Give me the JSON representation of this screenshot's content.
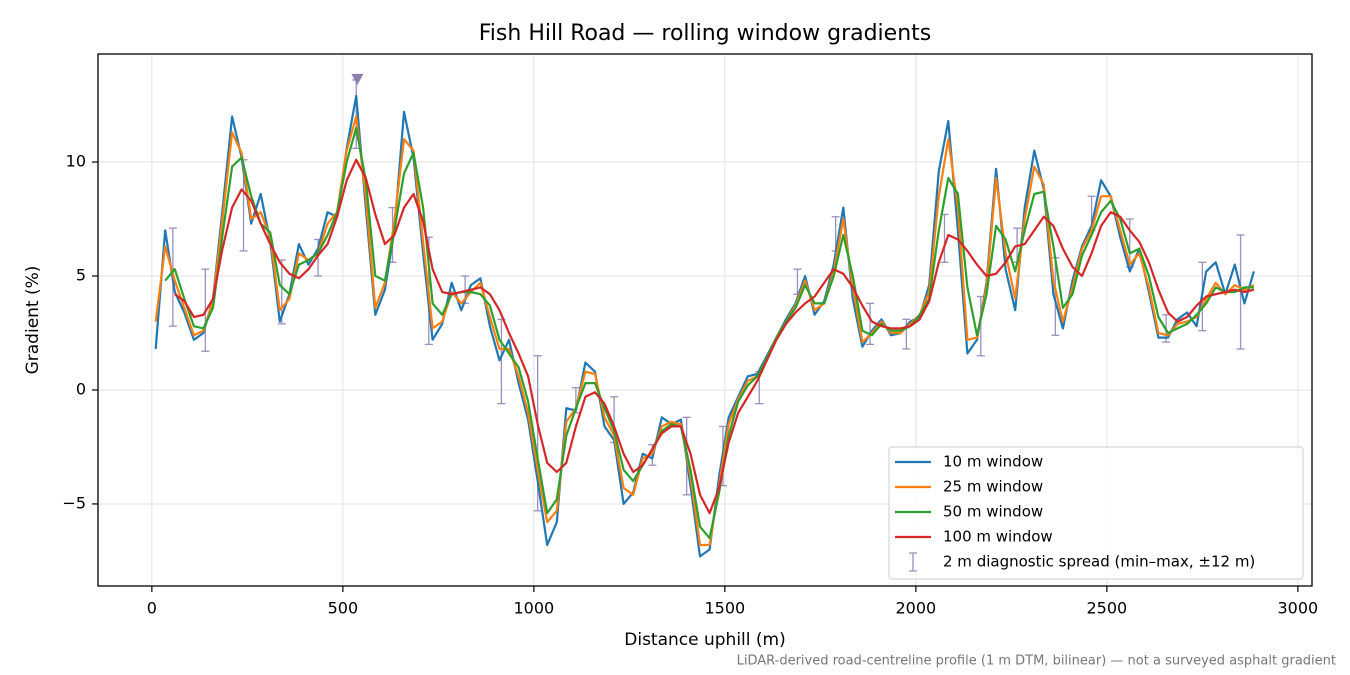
{
  "chart_data": {
    "type": "line",
    "title": "Fish Hill Road — rolling window gradients",
    "xlabel": "Distance uphill (m)",
    "ylabel": "Gradient (%)",
    "footnote": "LiDAR-derived road-centreline profile (1 m DTM, bilinear) — not a surveyed asphalt gradient",
    "xlim": [
      -141,
      3037
    ],
    "ylim": [
      -8.6,
      14.74
    ],
    "xticks": [
      0,
      500,
      1000,
      1500,
      2000,
      2500,
      3000
    ],
    "yticks": [
      {
        "value": -5,
        "label": "−5"
      },
      0,
      5,
      10
    ],
    "grid": true,
    "legend": "lower right",
    "x": [
      10,
      35,
      60,
      85,
      110,
      135,
      160,
      185,
      210,
      235,
      260,
      285,
      310,
      335,
      360,
      385,
      410,
      435,
      460,
      485,
      510,
      535,
      560,
      585,
      610,
      635,
      660,
      685,
      710,
      735,
      760,
      785,
      810,
      835,
      860,
      885,
      910,
      935,
      960,
      985,
      1010,
      1035,
      1060,
      1085,
      1110,
      1135,
      1160,
      1185,
      1210,
      1235,
      1260,
      1285,
      1310,
      1335,
      1360,
      1385,
      1410,
      1435,
      1460,
      1485,
      1510,
      1535,
      1560,
      1585,
      1610,
      1635,
      1660,
      1685,
      1710,
      1735,
      1760,
      1785,
      1810,
      1835,
      1860,
      1885,
      1910,
      1935,
      1960,
      1985,
      2010,
      2035,
      2060,
      2085,
      2110,
      2135,
      2160,
      2185,
      2210,
      2235,
      2260,
      2285,
      2310,
      2335,
      2360,
      2385,
      2410,
      2435,
      2460,
      2485,
      2510,
      2535,
      2560,
      2585,
      2610,
      2635,
      2660,
      2685,
      2710,
      2735,
      2760,
      2785,
      2810,
      2835,
      2860,
      2885
    ],
    "series": [
      {
        "name": "10 m window",
        "color": "#1f77b4",
        "values": [
          1.8,
          7.0,
          4.3,
          3.4,
          2.2,
          2.5,
          4.0,
          7.9,
          12.0,
          10.2,
          7.3,
          8.6,
          6.5,
          3.0,
          4.2,
          6.4,
          5.5,
          6.2,
          7.8,
          7.6,
          10.6,
          12.9,
          8.0,
          3.3,
          4.4,
          7.0,
          12.2,
          10.2,
          6.0,
          2.2,
          2.9,
          4.7,
          3.5,
          4.6,
          4.9,
          2.8,
          1.3,
          2.2,
          0.3,
          -1.3,
          -4.0,
          -6.8,
          -5.8,
          -0.8,
          -0.9,
          1.2,
          0.8,
          -1.6,
          -2.2,
          -5.0,
          -4.5,
          -2.8,
          -3.0,
          -1.2,
          -1.5,
          -1.3,
          -4.2,
          -7.3,
          -7.0,
          -3.8,
          -1.2,
          -0.3,
          0.6,
          0.7,
          1.5,
          2.3,
          3.1,
          3.8,
          5.0,
          3.3,
          3.9,
          5.5,
          8.0,
          4.0,
          1.9,
          2.6,
          3.1,
          2.4,
          2.5,
          3.0,
          3.2,
          4.6,
          9.6,
          11.8,
          7.0,
          1.6,
          2.2,
          4.7,
          9.7,
          5.3,
          3.5,
          8.0,
          10.5,
          8.8,
          4.2,
          2.7,
          4.8,
          6.3,
          7.2,
          9.2,
          8.5,
          6.7,
          5.2,
          6.2,
          4.3,
          2.3,
          2.3,
          3.1,
          3.4,
          2.8,
          5.2,
          5.6,
          4.2,
          5.5,
          3.8,
          5.2
        ]
      },
      {
        "name": "25 m window",
        "color": "#ff7f0e",
        "values": [
          3.0,
          6.3,
          4.8,
          3.6,
          2.4,
          2.6,
          3.9,
          7.5,
          11.3,
          10.4,
          7.5,
          7.8,
          6.7,
          3.5,
          4.0,
          6.0,
          5.7,
          6.0,
          7.3,
          7.8,
          10.5,
          12.0,
          8.5,
          3.6,
          4.7,
          7.4,
          11.0,
          10.5,
          6.5,
          2.7,
          3.0,
          4.3,
          3.8,
          4.3,
          4.7,
          3.2,
          1.8,
          1.8,
          0.6,
          -1.0,
          -3.5,
          -5.8,
          -5.3,
          -1.4,
          -0.8,
          0.8,
          0.7,
          -1.2,
          -2.0,
          -4.3,
          -4.6,
          -3.0,
          -2.8,
          -1.6,
          -1.4,
          -1.5,
          -3.8,
          -6.8,
          -6.8,
          -4.2,
          -1.5,
          -0.4,
          0.4,
          0.6,
          1.4,
          2.3,
          3.0,
          3.7,
          4.8,
          3.5,
          3.8,
          5.2,
          7.5,
          4.5,
          2.1,
          2.5,
          3.0,
          2.5,
          2.5,
          2.9,
          3.3,
          4.3,
          8.5,
          11.0,
          8.0,
          2.2,
          2.3,
          4.5,
          9.3,
          6.0,
          4.0,
          7.5,
          9.8,
          9.0,
          4.8,
          3.0,
          4.5,
          6.2,
          7.0,
          8.5,
          8.5,
          7.0,
          5.5,
          6.0,
          4.5,
          2.5,
          2.4,
          2.9,
          3.0,
          3.2,
          4.0,
          4.7,
          4.2,
          4.6,
          4.4,
          4.6
        ]
      },
      {
        "name": "50 m window",
        "color": "#2ca02c",
        "values": [
          null,
          4.8,
          5.3,
          4.0,
          2.8,
          2.7,
          3.6,
          6.8,
          9.8,
          10.2,
          8.5,
          7.3,
          6.9,
          4.6,
          4.2,
          5.5,
          5.7,
          6.0,
          6.8,
          7.8,
          10.0,
          11.5,
          9.2,
          5.0,
          4.8,
          7.0,
          9.5,
          10.4,
          8.0,
          3.8,
          3.3,
          4.2,
          4.3,
          4.3,
          4.2,
          3.7,
          2.2,
          1.6,
          1.0,
          -0.5,
          -3.0,
          -5.4,
          -4.8,
          -2.0,
          -0.8,
          0.3,
          0.3,
          -0.8,
          -1.8,
          -3.5,
          -4.0,
          -3.3,
          -2.6,
          -1.8,
          -1.5,
          -1.6,
          -3.5,
          -6.0,
          -6.5,
          -4.5,
          -2.0,
          -0.5,
          0.2,
          0.6,
          1.4,
          2.3,
          3.0,
          3.6,
          4.6,
          3.8,
          3.8,
          5.0,
          6.8,
          5.0,
          2.6,
          2.4,
          2.9,
          2.6,
          2.6,
          2.8,
          3.3,
          4.0,
          7.0,
          9.3,
          8.6,
          4.5,
          2.4,
          4.2,
          7.2,
          6.6,
          5.2,
          7.0,
          8.6,
          8.7,
          6.3,
          3.6,
          4.2,
          5.9,
          6.8,
          7.8,
          8.3,
          7.5,
          6.0,
          6.2,
          5.0,
          3.2,
          2.5,
          2.7,
          2.9,
          3.3,
          3.8,
          4.5,
          4.3,
          4.3,
          4.5,
          4.5
        ]
      },
      {
        "name": "100 m window",
        "color": "#d62728",
        "values": [
          null,
          null,
          4.2,
          3.9,
          3.2,
          3.3,
          4.0,
          6.2,
          8.0,
          8.8,
          8.3,
          7.3,
          6.4,
          5.6,
          5.1,
          4.9,
          5.3,
          5.9,
          6.4,
          7.6,
          9.2,
          10.1,
          9.3,
          7.7,
          6.4,
          6.8,
          8.0,
          8.6,
          7.4,
          5.3,
          4.3,
          4.2,
          4.3,
          4.4,
          4.5,
          4.2,
          3.5,
          2.5,
          1.6,
          0.6,
          -1.5,
          -3.2,
          -3.6,
          -3.2,
          -1.6,
          -0.3,
          -0.1,
          -0.6,
          -1.6,
          -2.8,
          -3.6,
          -3.3,
          -2.6,
          -1.9,
          -1.6,
          -1.6,
          -2.8,
          -4.6,
          -5.4,
          -4.3,
          -2.3,
          -1.0,
          -0.3,
          0.4,
          1.3,
          2.2,
          2.9,
          3.4,
          3.8,
          4.1,
          4.7,
          5.3,
          5.1,
          4.5,
          3.7,
          3.0,
          2.8,
          2.7,
          2.7,
          2.8,
          3.1,
          3.9,
          5.6,
          6.8,
          6.6,
          6.1,
          5.5,
          5.0,
          5.1,
          5.6,
          6.3,
          6.4,
          7.0,
          7.6,
          7.2,
          6.2,
          5.4,
          5.0,
          6.0,
          7.2,
          7.8,
          7.6,
          7.0,
          6.5,
          5.6,
          4.4,
          3.4,
          3.0,
          3.2,
          3.7,
          4.1,
          4.2,
          4.3,
          4.4,
          4.3,
          4.4
        ]
      }
    ],
    "errorbars": {
      "name": "2 m diagnostic spread (min–max, ±12 m)",
      "color": "#9a8fbf",
      "x": [
        55,
        140,
        240,
        340,
        435,
        535,
        630,
        725,
        820,
        915,
        1010,
        1110,
        1210,
        1310,
        1400,
        1495,
        1590,
        1690,
        1790,
        1880,
        1975,
        2075,
        2170,
        2265,
        2365,
        2460,
        2560,
        2655,
        2750,
        2850
      ],
      "low": [
        2.8,
        1.7,
        6.1,
        2.9,
        5.0,
        10.6,
        5.6,
        2.0,
        3.8,
        -0.6,
        -5.3,
        -1.0,
        -2.3,
        -3.3,
        -4.6,
        -4.2,
        -0.6,
        4.2,
        6.1,
        2.0,
        1.8,
        5.6,
        1.5,
        5.6,
        2.4,
        7.0,
        5.4,
        2.1,
        2.6,
        1.8
      ],
      "high": [
        7.1,
        5.3,
        10.1,
        5.7,
        6.6,
        13.6,
        8.0,
        6.7,
        5.0,
        3.1,
        1.5,
        0.1,
        -0.3,
        -2.4,
        -1.2,
        -1.6,
        0.8,
        5.3,
        7.6,
        3.8,
        3.1,
        7.7,
        4.1,
        7.1,
        5.8,
        8.5,
        7.5,
        3.3,
        5.6,
        6.8
      ],
      "peak_marker": {
        "x": 538,
        "y": 13.65
      }
    }
  }
}
